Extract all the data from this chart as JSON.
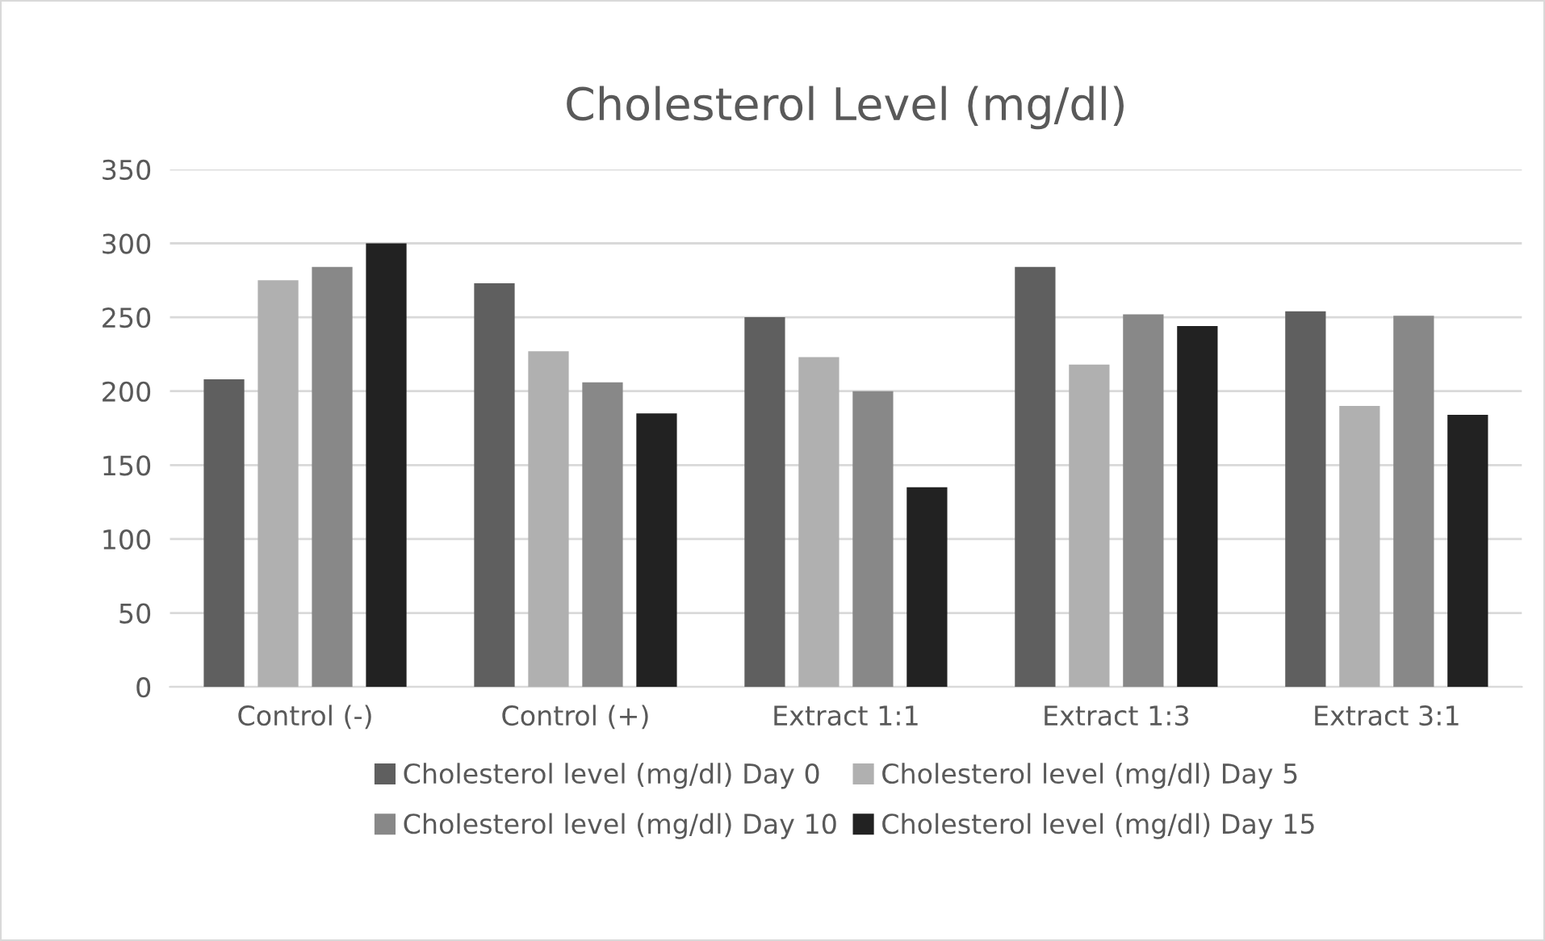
{
  "chart_data": {
    "type": "bar",
    "title": "Cholesterol Level (mg/dl)",
    "categories": [
      "Control (-)",
      "Control (+)",
      "Extract 1:1",
      "Extract 1:3",
      "Extract 3:1"
    ],
    "series": [
      {
        "name": "Cholesterol level (mg/dl) Day 0",
        "color": "#5f5f5f",
        "values": [
          208,
          273,
          250,
          284,
          254
        ]
      },
      {
        "name": "Cholesterol level (mg/dl) Day 5",
        "color": "#b0b0b0",
        "values": [
          275,
          227,
          223,
          218,
          190
        ]
      },
      {
        "name": "Cholesterol level (mg/dl) Day 10",
        "color": "#888888",
        "values": [
          284,
          206,
          200,
          252,
          251
        ]
      },
      {
        "name": "Cholesterol level (mg/dl) Day 15",
        "color": "#222222",
        "values": [
          300,
          185,
          135,
          244,
          184
        ]
      }
    ],
    "ylim": [
      0,
      350
    ],
    "yticks": [
      0,
      50,
      100,
      150,
      200,
      250,
      300,
      350
    ],
    "grid": "y",
    "legend": "bottom"
  }
}
